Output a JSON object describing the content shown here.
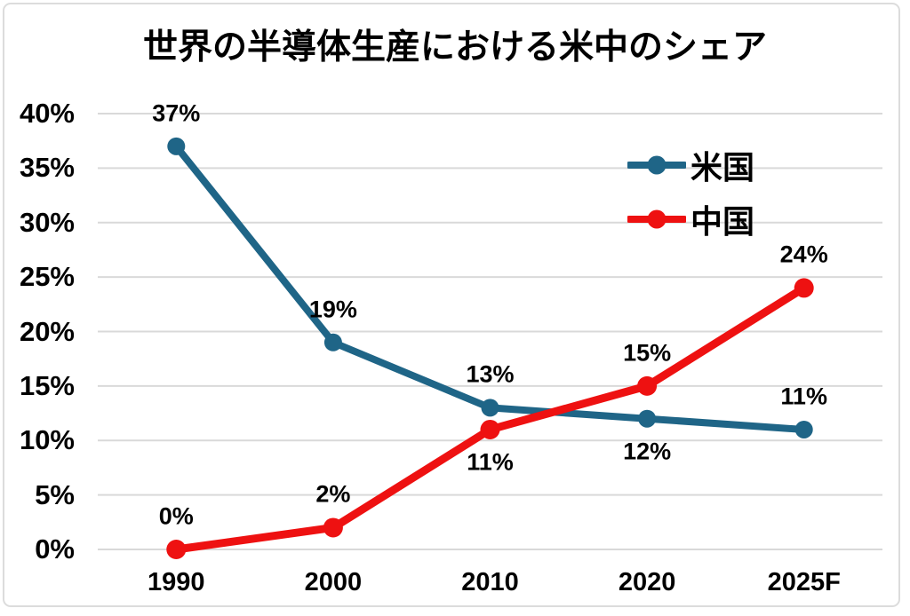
{
  "chart_data": {
    "type": "line",
    "title": "世界の半導体生産における米中のシェア",
    "categories": [
      "1990",
      "2000",
      "2010",
      "2020",
      "2025F"
    ],
    "series": [
      {
        "name": "米国",
        "id": "us",
        "color": "#1F6587",
        "values": [
          37,
          19,
          13,
          12,
          11
        ],
        "labels": [
          "37%",
          "19%",
          "13%",
          "12%",
          "11%"
        ],
        "label_positions": [
          "above",
          "above",
          "above",
          "below",
          "above"
        ]
      },
      {
        "name": "中国",
        "id": "china",
        "color": "#EE1111",
        "values": [
          0,
          2,
          11,
          15,
          24
        ],
        "labels": [
          "0%",
          "2%",
          "11%",
          "15%",
          "24%"
        ],
        "label_positions": [
          "above",
          "above",
          "below",
          "above",
          "above"
        ]
      }
    ],
    "ylim": [
      0,
      40
    ],
    "ytick_step": 5,
    "ytick_labels": [
      "0%",
      "5%",
      "10%",
      "15%",
      "20%",
      "25%",
      "30%",
      "35%",
      "40%"
    ],
    "xlabel": "",
    "ylabel": "",
    "grid": "horizontal",
    "legend_position": "upper-right"
  },
  "style_colors": {
    "gridline": "#D9D9D9",
    "text": "#000000",
    "frame_border": "#DCDCDC",
    "background": "#FFFFFF"
  }
}
